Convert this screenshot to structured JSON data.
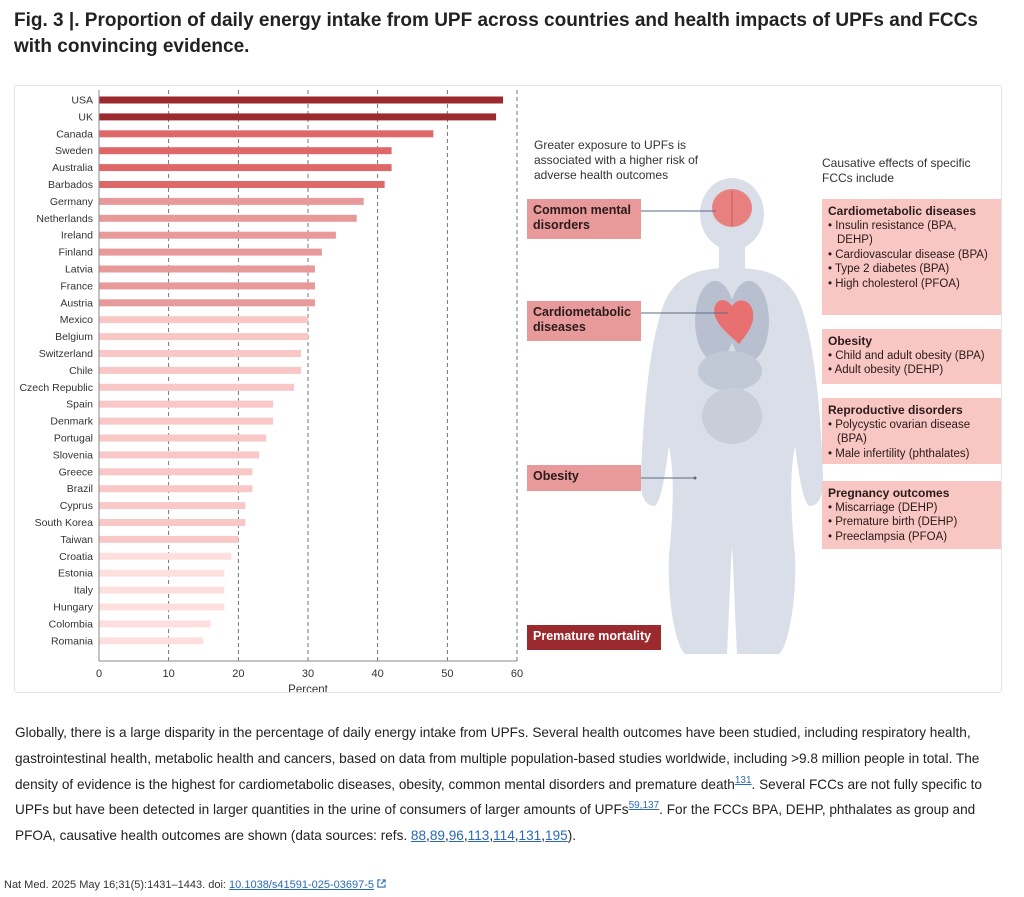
{
  "figure": {
    "title": "Fig. 3 |. Proportion of daily energy intake from UPF across countries and health impacts of UPFs and FCCs with convincing evidence."
  },
  "chart_data": {
    "type": "bar",
    "orientation": "horizontal",
    "xlabel": "Percent",
    "xlim": [
      0,
      60
    ],
    "xticks": [
      "0",
      "10",
      "20",
      "30",
      "40",
      "50",
      "60"
    ],
    "grid": "vertical dashed",
    "categories": [
      "USA",
      "UK",
      "Canada",
      "Sweden",
      "Australia",
      "Barbados",
      "Germany",
      "Netherlands",
      "Ireland",
      "Finland",
      "Latvia",
      "France",
      "Austria",
      "Mexico",
      "Belgium",
      "Switzerland",
      "Chile",
      "Czech Republic",
      "Spain",
      "Denmark",
      "Portugal",
      "Slovenia",
      "Greece",
      "Brazil",
      "Cyprus",
      "South Korea",
      "Taiwan",
      "Croatia",
      "Estonia",
      "Italy",
      "Hungary",
      "Colombia",
      "Romania"
    ],
    "values": [
      58,
      57,
      48,
      42,
      42,
      41,
      38,
      37,
      34,
      32,
      31,
      31,
      31,
      30,
      30,
      29,
      29,
      28,
      25,
      25,
      24,
      23,
      22,
      22,
      21,
      21,
      20,
      19,
      18,
      18,
      18,
      16,
      15
    ],
    "colors": [
      "#9b2a2e",
      "#9b2a2e",
      "#de6868",
      "#de6868",
      "#de6868",
      "#de6868",
      "#e89a9a",
      "#e89a9a",
      "#e89a9a",
      "#e89a9a",
      "#e89a9a",
      "#e89a9a",
      "#e89a9a",
      "#f9c8c6",
      "#f9c8c6",
      "#f9c8c6",
      "#f9c8c6",
      "#f9c8c6",
      "#f9c8c6",
      "#f9c8c6",
      "#f9c8c6",
      "#f9c8c6",
      "#f9c8c6",
      "#f9c8c6",
      "#f9c8c6",
      "#f9c8c6",
      "#f9c8c6",
      "#fde0de",
      "#fde0de",
      "#fde0de",
      "#fde0de",
      "#fde0de",
      "#fde0de"
    ]
  },
  "diagram": {
    "left_heading": "Greater exposure to UPFs is associated with a higher risk of adverse health outcomes",
    "right_heading": "Causative effects of specific FCCs include",
    "outcomes": [
      "Common mental disorders",
      "Cardiometabolic diseases",
      "Obesity",
      "Premature mortality"
    ],
    "fcc_effects": [
      {
        "heading": "Cardiometabolic diseases",
        "items": [
          "Insulin resistance (BPA, DEHP)",
          "Cardiovascular disease (BPA)",
          "Type 2 diabetes (BPA)",
          "High cholesterol (PFOA)"
        ]
      },
      {
        "heading": "Obesity",
        "items": [
          "Child and adult obesity (BPA)",
          "Adult obesity (DEHP)"
        ]
      },
      {
        "heading": "Reproductive disorders",
        "items": [
          "Polycystic ovarian disease (BPA)",
          "Male infertility (phthalates)"
        ]
      },
      {
        "heading": "Pregnancy outcomes",
        "items": [
          "Miscarriage (DEHP)",
          "Premature birth (DEHP)",
          "Preeclampsia (PFOA)"
        ]
      }
    ],
    "colors": {
      "outcome_box": "#e89a9a",
      "mortality_box": "#9b2a2e",
      "fcc_box": "#f8c6c3",
      "body": "#d9dee8"
    }
  },
  "caption": {
    "p1": "Globally, there is a large disparity in the percentage of daily energy intake from UPFs. Several health outcomes have been studied, including respiratory health, gastrointestinal health, metabolic health and cancers, based on data from multiple population-based studies worldwide, including >9.8 million people in total. The density of evidence is the highest for cardiometabolic diseases, obesity, common mental disorders and premature death",
    "ref1": "131",
    "p2": ". Several FCCs are not fully specific to UPFs but have been detected in larger quantities in the urine of consumers of larger amounts of UPFs",
    "ref2": "59,137",
    "p3": ". For the FCCs BPA, DEHP, phthalates as group and PFOA, causative health outcomes are shown (data sources: refs. ",
    "refs": [
      "88",
      "89",
      "96",
      "113",
      "114",
      "131",
      "195"
    ],
    "p4": ")."
  },
  "citation": {
    "text": "Nat Med. 2025 May 16;31(5):1431–1443. doi: ",
    "doi": "10.1038/s41591-025-03697-5",
    "external_icon": "external-link-icon"
  }
}
